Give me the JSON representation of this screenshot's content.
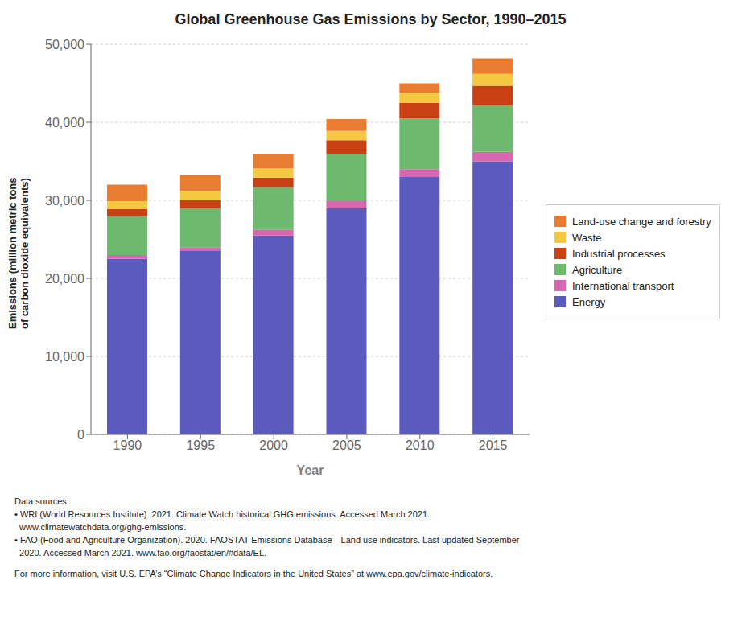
{
  "chart_data": {
    "type": "bar",
    "title": "Global Greenhouse Gas Emissions by Sector, 1990–2015",
    "xlabel": "Year",
    "ylabel": "Emissions (million metric tons\nof carbon dioxide equivalents)",
    "categories": [
      "1990",
      "1995",
      "2000",
      "2005",
      "2010",
      "2015"
    ],
    "series": [
      {
        "name": "Energy",
        "color": "#5b5bbd",
        "values": [
          22500,
          23500,
          25500,
          29000,
          33000,
          35000
        ]
      },
      {
        "name": "International transport",
        "color": "#d966b0",
        "values": [
          500,
          500,
          700,
          900,
          1000,
          1200
        ]
      },
      {
        "name": "Agriculture",
        "color": "#6db96d",
        "values": [
          5000,
          5000,
          5500,
          6000,
          6500,
          6000
        ]
      },
      {
        "name": "Industrial processes",
        "color": "#c84014",
        "values": [
          900,
          1000,
          1200,
          1800,
          2000,
          2500
        ]
      },
      {
        "name": "Waste",
        "color": "#f5c842",
        "values": [
          1000,
          1200,
          1200,
          1200,
          1300,
          1500
        ]
      },
      {
        "name": "Land-use change and forestry",
        "color": "#e87c30",
        "values": [
          2100,
          2000,
          1800,
          1500,
          1200,
          2000
        ]
      }
    ],
    "stacked": true,
    "ylim": [
      0,
      50000
    ],
    "yticks": [
      0,
      {
        "value": 10000,
        "label": "10,000"
      },
      {
        "value": 20000,
        "label": "20,000"
      },
      {
        "value": 30000,
        "label": "30,000"
      },
      {
        "value": 40000,
        "label": "40,000"
      },
      {
        "value": 50000,
        "label": "50,000"
      }
    ],
    "grid": true,
    "legend": "right",
    "annotations": [
      "Data sources:",
      "• WRI (World Resources Institute). 2021. Climate Watch historical GHG emissions. Accessed March 2021.",
      "  www.climatewatchdata.org/ghg-emissions.",
      "• FAO (Food and Agriculture Organization). 2020. FAOSTAT Emissions Database—Land use indicators. Last updated September",
      "  2020. Accessed March 2021. www.fao.org/faostat/en/#data/EL.",
      "For more information, visit U.S. EPA’s “Climate Change Indicators in the United States” at www.epa.gov/climate-indicators."
    ]
  }
}
